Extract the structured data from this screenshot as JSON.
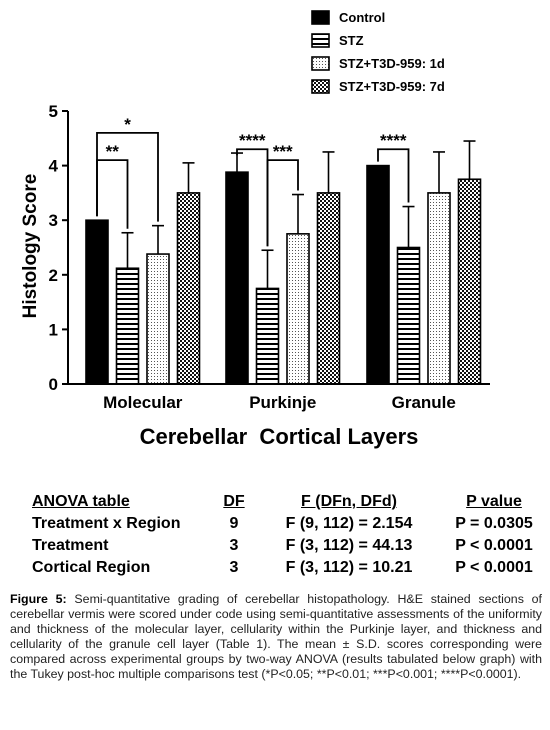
{
  "chart_data": {
    "type": "bar",
    "categories": [
      "Molecular",
      "Purkinje",
      "Granule"
    ],
    "series": [
      {
        "name": "Control",
        "values": [
          3.0,
          3.88,
          4.0
        ],
        "sd": [
          0.0,
          0.35,
          0.0
        ]
      },
      {
        "name": "STZ",
        "values": [
          2.12,
          1.75,
          2.5
        ],
        "sd": [
          0.65,
          0.7,
          0.75
        ]
      },
      {
        "name": "STZ+T3D-959: 1d",
        "values": [
          2.38,
          2.75,
          3.5
        ],
        "sd": [
          0.52,
          0.72,
          0.75
        ]
      },
      {
        "name": "STZ+T3D-959: 7d",
        "values": [
          3.5,
          3.5,
          3.75
        ],
        "sd": [
          0.55,
          0.75,
          0.7
        ]
      }
    ],
    "xlabel": "Cerebellar  Cortical Layers",
    "ylabel": "Histology Score",
    "ylim": [
      0,
      5
    ],
    "yticks": [
      "0",
      "1",
      "2",
      "3",
      "4",
      "5"
    ],
    "legend_position": "top",
    "significance": [
      {
        "category": "Molecular",
        "from": "Control",
        "to": "STZ",
        "label": "**"
      },
      {
        "category": "Molecular",
        "from": "Control",
        "to": "STZ+T3D-959: 1d",
        "label": "*"
      },
      {
        "category": "Purkinje",
        "from": "Control",
        "to": "STZ",
        "label": "****"
      },
      {
        "category": "Purkinje",
        "from": "STZ",
        "to": "STZ+T3D-959: 1d",
        "label": "***"
      },
      {
        "category": "Granule",
        "from": "Control",
        "to": "STZ",
        "label": "****"
      }
    ]
  },
  "anova_table": {
    "headers": [
      "ANOVA table",
      "DF",
      "F (DFn, DFd)",
      "P value"
    ],
    "rows": [
      [
        "Treatment x Region",
        "9",
        "F (9, 112) = 2.154",
        "P = 0.0305"
      ],
      [
        "Treatment",
        "3",
        "F (3, 112) = 44.13",
        "P < 0.0001"
      ],
      [
        "Cortical Region",
        "3",
        "F (3, 112) = 10.21",
        "P < 0.0001"
      ]
    ]
  },
  "caption": {
    "label": "Figure 5:",
    "text": " Semi-quantitative grading of cerebellar histopathology. H&E stained sections of cerebellar vermis were scored under code using semi-quantitative assessments of the uniformity and thickness of the molecular layer, cellularity within the Purkinje layer, and thickness and cellularity of the granule cell layer (Table 1). The mean ± S.D. scores corresponding were compared across experimental groups by two-way ANOVA (results tabulated below graph) with the Tukey post-hoc multiple comparisons test (*P<0.05; **P<0.01; ***P<0.001; ****P<0.0001)."
  }
}
